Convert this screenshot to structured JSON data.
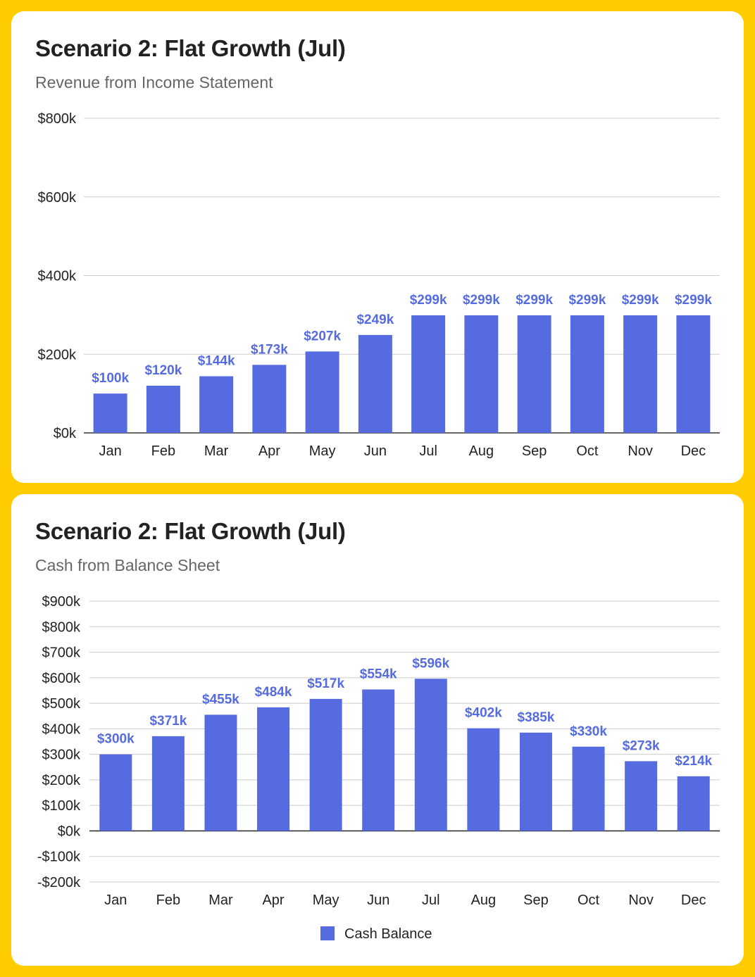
{
  "colors": {
    "background": "#FFCC00",
    "bar": "#566BE0",
    "label": "#566BE0",
    "grid": "#CCCCCC",
    "axis": "#333333"
  },
  "chart_data": [
    {
      "type": "bar",
      "title": "Scenario 2: Flat Growth (Jul)",
      "subtitle": "Revenue from Income Statement",
      "categories": [
        "Jan",
        "Feb",
        "Mar",
        "Apr",
        "May",
        "Jun",
        "Jul",
        "Aug",
        "Sep",
        "Oct",
        "Nov",
        "Dec"
      ],
      "values": [
        100,
        120,
        144,
        173,
        207,
        249,
        299,
        299,
        299,
        299,
        299,
        299
      ],
      "data_labels": [
        "$100k",
        "$120k",
        "$144k",
        "$173k",
        "$207k",
        "$249k",
        "$299k",
        "$299k",
        "$299k",
        "$299k",
        "$299k",
        "$299k"
      ],
      "y_ticks": [
        0,
        200,
        400,
        600,
        800
      ],
      "y_tick_labels": [
        "$0k",
        "$200k",
        "$400k",
        "$600k",
        "$800k"
      ],
      "ylim": [
        0,
        800
      ],
      "grid": true,
      "legend": null
    },
    {
      "type": "bar",
      "title": "Scenario 2: Flat Growth (Jul)",
      "subtitle": "Cash from Balance Sheet",
      "categories": [
        "Jan",
        "Feb",
        "Mar",
        "Apr",
        "May",
        "Jun",
        "Jul",
        "Aug",
        "Sep",
        "Oct",
        "Nov",
        "Dec"
      ],
      "series": [
        {
          "name": "Cash Balance",
          "values": [
            300,
            371,
            455,
            484,
            517,
            554,
            596,
            402,
            385,
            330,
            273,
            214
          ]
        }
      ],
      "data_labels": [
        "$300k",
        "$371k",
        "$455k",
        "$484k",
        "$517k",
        "$554k",
        "$596k",
        "$402k",
        "$385k",
        "$330k",
        "$273k",
        "$214k"
      ],
      "y_ticks": [
        -200,
        -100,
        0,
        100,
        200,
        300,
        400,
        500,
        600,
        700,
        800,
        900
      ],
      "y_tick_labels": [
        "-$200k",
        "-$100k",
        "$0k",
        "$100k",
        "$200k",
        "$300k",
        "$400k",
        "$500k",
        "$600k",
        "$700k",
        "$800k",
        "$900k"
      ],
      "ylim": [
        -200,
        900
      ],
      "grid": true,
      "legend": "bottom-center"
    }
  ]
}
